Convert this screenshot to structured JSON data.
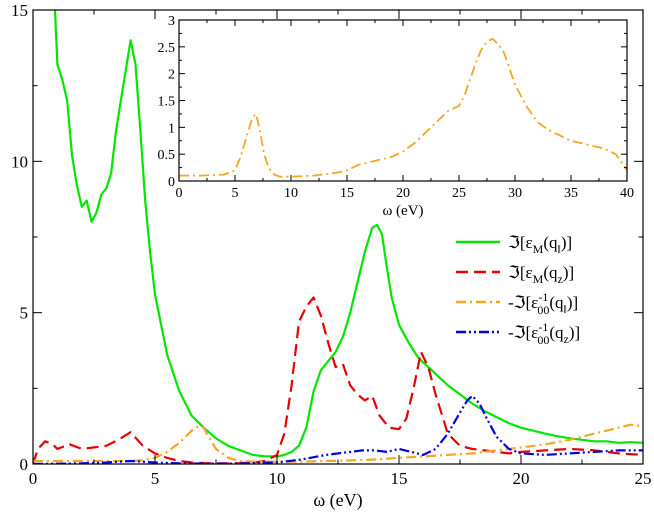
{
  "chart_data": [
    {
      "type": "line",
      "title": "",
      "xlabel": "ω (eV)",
      "ylabel": "",
      "xlim": [
        0,
        25
      ],
      "ylim": [
        0,
        15
      ],
      "xticks": [
        "0",
        "5",
        "10",
        "15",
        "20",
        "25"
      ],
      "yticks": [
        "0",
        "5",
        "10",
        "15"
      ],
      "grid": false,
      "legend_position": "right",
      "series": [
        {
          "name": "ℑ[εM(q‖)]",
          "legend": {
            "prefix": "ℑ[ε",
            "sub": "M",
            "mid": "(q",
            "sub2": "‖",
            "suffix": ")]"
          },
          "color": "#00e600",
          "style": "solid",
          "x": [
            0.9,
            1.0,
            1.2,
            1.4,
            1.6,
            1.8,
            2.0,
            2.2,
            2.4,
            2.6,
            2.8,
            3.0,
            3.2,
            3.4,
            3.6,
            3.8,
            4.0,
            4.2,
            4.4,
            4.6,
            4.8,
            5.0,
            5.5,
            6.0,
            6.5,
            7.0,
            7.5,
            8.0,
            8.5,
            9.0,
            9.5,
            10.0,
            10.3,
            10.6,
            10.9,
            11.2,
            11.5,
            11.8,
            12.1,
            12.4,
            12.7,
            13.0,
            13.3,
            13.6,
            13.9,
            14.1,
            14.3,
            14.5,
            14.7,
            15.0,
            15.4,
            15.8,
            16.2,
            16.6,
            17.0,
            17.5,
            18.0,
            18.5,
            19.0,
            19.5,
            20.0,
            20.5,
            21.0,
            21.5,
            22.0,
            22.5,
            23.0,
            23.5,
            24.0,
            24.5,
            25.0
          ],
          "y": [
            15.0,
            13.2,
            12.7,
            12.0,
            10.2,
            9.2,
            8.5,
            8.7,
            8.0,
            8.3,
            8.9,
            9.1,
            9.6,
            11.0,
            12.0,
            13.0,
            14.0,
            13.2,
            11.0,
            8.7,
            7.0,
            5.6,
            3.6,
            2.4,
            1.6,
            1.2,
            0.85,
            0.6,
            0.45,
            0.3,
            0.25,
            0.25,
            0.3,
            0.4,
            0.6,
            1.2,
            2.4,
            3.1,
            3.4,
            3.7,
            4.2,
            5.0,
            6.0,
            7.0,
            7.8,
            7.9,
            7.6,
            6.5,
            5.5,
            4.6,
            4.0,
            3.5,
            3.2,
            2.9,
            2.6,
            2.3,
            2.0,
            1.75,
            1.55,
            1.35,
            1.2,
            1.1,
            1.0,
            0.92,
            0.85,
            0.8,
            0.75,
            0.75,
            0.7,
            0.72,
            0.7
          ]
        },
        {
          "name": "ℑ[εM(qz)]",
          "legend": {
            "prefix": "ℑ[ε",
            "sub": "M",
            "mid": "(q",
            "sub2": "z",
            "suffix": ")]"
          },
          "color": "#e60000",
          "style": "dashed",
          "x": [
            0.0,
            0.2,
            0.5,
            0.8,
            1.0,
            1.5,
            2.0,
            2.5,
            3.0,
            3.5,
            4.0,
            4.5,
            5.0,
            5.5,
            6.0,
            6.5,
            7.0,
            7.5,
            8.0,
            8.5,
            9.0,
            9.5,
            10.0,
            10.3,
            10.6,
            10.9,
            11.2,
            11.5,
            11.8,
            12.1,
            12.4,
            12.7,
            13.0,
            13.3,
            13.6,
            13.9,
            14.2,
            14.6,
            15.0,
            15.3,
            15.6,
            15.9,
            16.2,
            16.5,
            17.0,
            17.5,
            18.0,
            18.5,
            19.0,
            19.5,
            20.0,
            21.0,
            22.0,
            23.0,
            24.0,
            25.0
          ],
          "y": [
            0.0,
            0.5,
            0.75,
            0.65,
            0.5,
            0.65,
            0.5,
            0.55,
            0.6,
            0.8,
            1.05,
            0.6,
            0.35,
            0.2,
            0.1,
            0.05,
            0.03,
            0.02,
            0.02,
            0.03,
            0.05,
            0.1,
            0.3,
            1.0,
            2.6,
            4.7,
            5.2,
            5.5,
            4.9,
            4.0,
            3.2,
            3.3,
            2.6,
            2.3,
            2.1,
            2.25,
            1.6,
            1.2,
            1.15,
            1.5,
            2.5,
            3.7,
            3.2,
            2.3,
            1.0,
            0.6,
            0.5,
            0.45,
            0.4,
            0.35,
            0.4,
            0.45,
            0.5,
            0.45,
            0.35,
            0.3
          ]
        },
        {
          "name": "-ℑ[ε-100(q‖)]",
          "legend": {
            "prefix": "-ℑ[ε",
            "sup": "-1",
            "sub": "00",
            "mid": "(q",
            "sub2": "‖",
            "suffix": ")]"
          },
          "color": "#f5a623",
          "style": "dashdot",
          "x": [
            0.0,
            1.0,
            2.0,
            3.0,
            4.0,
            4.5,
            5.0,
            5.5,
            6.0,
            6.5,
            6.8,
            7.0,
            7.2,
            7.5,
            8.0,
            8.5,
            9.0,
            10.0,
            11.0,
            12.0,
            13.0,
            14.0,
            15.0,
            16.0,
            17.0,
            18.0,
            19.0,
            20.0,
            21.0,
            22.0,
            23.0,
            24.0,
            24.5,
            25.0
          ],
          "y": [
            0.1,
            0.1,
            0.1,
            0.1,
            0.1,
            0.12,
            0.2,
            0.4,
            0.7,
            1.1,
            1.25,
            1.2,
            0.9,
            0.5,
            0.2,
            0.1,
            0.08,
            0.08,
            0.08,
            0.1,
            0.12,
            0.15,
            0.2,
            0.25,
            0.3,
            0.35,
            0.45,
            0.55,
            0.65,
            0.8,
            1.0,
            1.2,
            1.3,
            1.25
          ]
        },
        {
          "name": "-ℑ[ε-100(qz)]",
          "legend": {
            "prefix": "-ℑ[ε",
            "sup": "-1",
            "sub": "00",
            "mid": "(q",
            "sub2": "z",
            "suffix": ")]"
          },
          "color": "#0000e6",
          "style": "dashdotdot",
          "x": [
            0.0,
            2.0,
            3.0,
            4.0,
            5.0,
            6.0,
            8.0,
            10.0,
            11.0,
            12.0,
            13.0,
            13.5,
            14.0,
            14.5,
            15.0,
            15.5,
            16.0,
            16.5,
            17.0,
            17.5,
            17.8,
            18.0,
            18.3,
            18.6,
            19.0,
            19.5,
            20.0,
            21.0,
            22.0,
            23.0,
            24.0,
            25.0
          ],
          "y": [
            0.0,
            0.02,
            0.05,
            0.1,
            0.05,
            0.02,
            0.01,
            0.05,
            0.15,
            0.3,
            0.4,
            0.45,
            0.45,
            0.4,
            0.5,
            0.4,
            0.3,
            0.5,
            1.0,
            1.7,
            2.1,
            2.25,
            2.0,
            1.5,
            0.9,
            0.5,
            0.35,
            0.3,
            0.35,
            0.4,
            0.45,
            0.45
          ]
        }
      ]
    },
    {
      "type": "line",
      "title": "",
      "xlabel": "ω (eV)",
      "ylabel": "",
      "xlim": [
        0,
        40
      ],
      "ylim": [
        0,
        3
      ],
      "xticks": [
        "0",
        "5",
        "10",
        "15",
        "20",
        "25",
        "30",
        "35",
        "40"
      ],
      "yticks": [
        "0",
        "0.5",
        "1",
        "1.5",
        "2",
        "2.5",
        "3"
      ],
      "grid": false,
      "series": [
        {
          "color": "#f5a623",
          "style": "dashdot",
          "x": [
            0.0,
            2.0,
            4.0,
            5.0,
            5.5,
            6.0,
            6.5,
            6.8,
            7.0,
            7.3,
            7.6,
            8.0,
            8.5,
            9.0,
            10.0,
            12.0,
            14.0,
            15.0,
            16.0,
            17.0,
            18.0,
            19.0,
            20.0,
            21.0,
            22.0,
            23.0,
            24.0,
            25.0,
            25.5,
            26.0,
            26.5,
            27.0,
            27.5,
            28.0,
            28.5,
            29.0,
            29.5,
            30.0,
            31.0,
            32.0,
            33.0,
            34.0,
            35.0,
            36.0,
            37.0,
            38.0,
            39.0,
            39.5,
            40.0
          ],
          "y": [
            0.1,
            0.1,
            0.12,
            0.2,
            0.45,
            0.8,
            1.15,
            1.25,
            1.15,
            0.85,
            0.5,
            0.25,
            0.12,
            0.08,
            0.08,
            0.1,
            0.15,
            0.2,
            0.3,
            0.35,
            0.4,
            0.45,
            0.55,
            0.7,
            0.9,
            1.1,
            1.3,
            1.4,
            1.6,
            1.9,
            2.2,
            2.45,
            2.6,
            2.65,
            2.55,
            2.4,
            2.1,
            1.8,
            1.4,
            1.1,
            0.95,
            0.85,
            0.75,
            0.7,
            0.65,
            0.6,
            0.5,
            0.35,
            0.2
          ]
        }
      ]
    }
  ]
}
